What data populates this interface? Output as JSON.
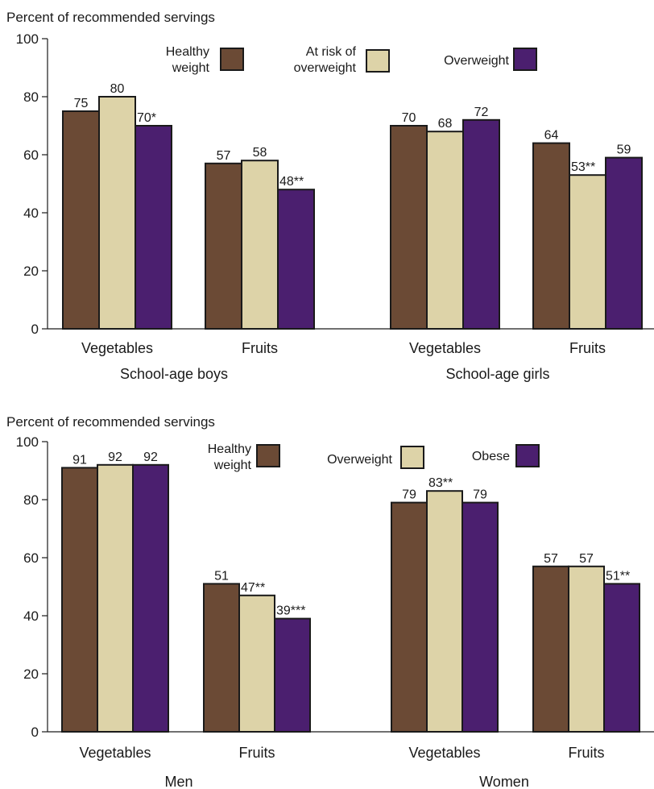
{
  "chart_data": [
    {
      "type": "bar",
      "ylabel": "Percent of recommended servings",
      "ylim": [
        0,
        100
      ],
      "yticks": [
        "0",
        "20",
        "40",
        "60",
        "80",
        "100"
      ],
      "legend": [
        {
          "lines": [
            "Healthy",
            "weight"
          ],
          "color": "#6b4a35"
        },
        {
          "lines": [
            "At risk of",
            "overweight"
          ],
          "color": "#ddd3a8"
        },
        {
          "lines": [
            "Overweight"
          ],
          "color": "#4b1f6f"
        }
      ],
      "groups": [
        {
          "name": "School-age boys",
          "categories": [
            {
              "label": "Vegetables",
              "values": [
                75,
                80,
                70
              ],
              "labels": [
                "75",
                "80",
                "70*"
              ]
            },
            {
              "label": "Fruits",
              "values": [
                57,
                58,
                48
              ],
              "labels": [
                "57",
                "58",
                "48**"
              ]
            }
          ]
        },
        {
          "name": "School-age girls",
          "categories": [
            {
              "label": "Vegetables",
              "values": [
                70,
                68,
                72
              ],
              "labels": [
                "70",
                "68",
                "72"
              ]
            },
            {
              "label": "Fruits",
              "values": [
                64,
                53,
                59
              ],
              "labels": [
                "64",
                "53**",
                "59"
              ]
            }
          ]
        }
      ]
    },
    {
      "type": "bar",
      "ylabel": "Percent of recommended servings",
      "ylim": [
        0,
        100
      ],
      "yticks": [
        "0",
        "20",
        "40",
        "60",
        "80",
        "100"
      ],
      "legend": [
        {
          "lines": [
            "Healthy",
            "weight"
          ],
          "color": "#6b4a35"
        },
        {
          "lines": [
            "Overweight"
          ],
          "color": "#ddd3a8"
        },
        {
          "lines": [
            "Obese"
          ],
          "color": "#4b1f6f"
        }
      ],
      "groups": [
        {
          "name": "Men",
          "categories": [
            {
              "label": "Vegetables",
              "values": [
                91,
                92,
                92
              ],
              "labels": [
                "91",
                "92",
                "92"
              ]
            },
            {
              "label": "Fruits",
              "values": [
                51,
                47,
                39
              ],
              "labels": [
                "51",
                "47**",
                "39***"
              ]
            }
          ]
        },
        {
          "name": "Women",
          "categories": [
            {
              "label": "Vegetables",
              "values": [
                79,
                83,
                79
              ],
              "labels": [
                "79",
                "83**",
                "79"
              ]
            },
            {
              "label": "Fruits",
              "values": [
                57,
                57,
                51
              ],
              "labels": [
                "57",
                "57",
                "51**"
              ]
            }
          ]
        }
      ]
    }
  ]
}
